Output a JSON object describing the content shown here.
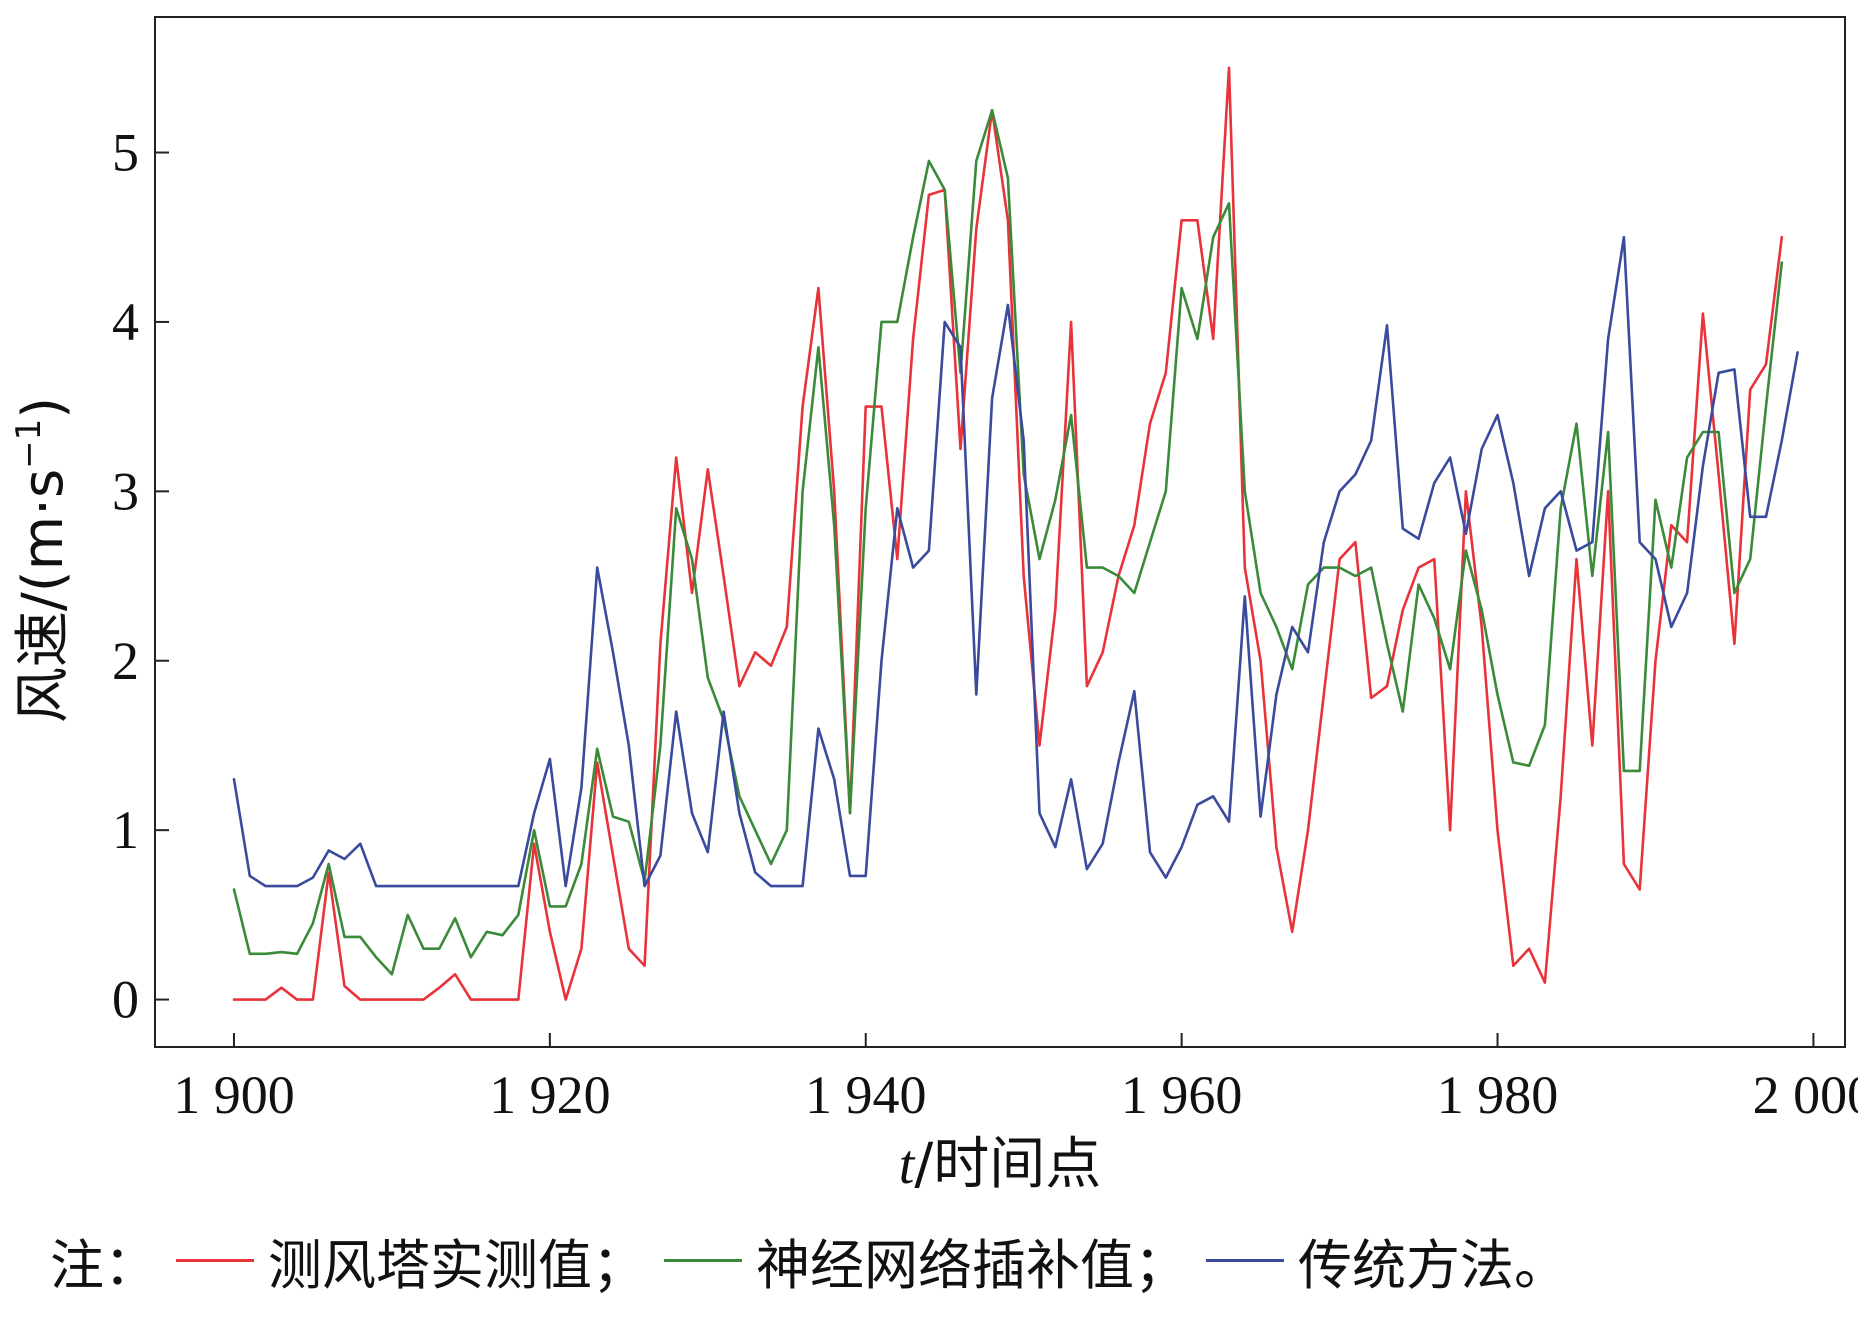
{
  "chart_data": {
    "type": "line",
    "xlabel_italic": "t",
    "xlabel_rest": "/时间点",
    "ylabel": "风速/(m·s",
    "ylabel_sup": "−1",
    "ylabel_end": ")",
    "xlim": [
      1895,
      2002
    ],
    "ylim": [
      -0.28,
      5.8
    ],
    "x_ticks": [
      1900,
      1920,
      1940,
      1960,
      1980,
      2000
    ],
    "x_tick_labels": [
      "1 900",
      "1 920",
      "1 940",
      "1 960",
      "1 980",
      "2 000"
    ],
    "y_ticks": [
      0,
      1,
      2,
      3,
      4,
      5
    ],
    "y_tick_labels": [
      "0",
      "1",
      "2",
      "3",
      "4",
      "5"
    ],
    "grid": false,
    "x_start": 1900,
    "series": [
      {
        "name": "测风塔实测值",
        "color": "#e8333a",
        "values": [
          0.0,
          0.0,
          0.0,
          0.07,
          0.0,
          0.0,
          0.75,
          0.08,
          0.0,
          0.0,
          0.0,
          0.0,
          0.0,
          0.07,
          0.15,
          0.0,
          0.0,
          0.0,
          0.0,
          0.92,
          0.4,
          0.0,
          0.3,
          1.4,
          0.85,
          0.3,
          0.2,
          2.1,
          3.2,
          2.4,
          3.13,
          2.5,
          1.85,
          2.05,
          1.97,
          2.2,
          3.5,
          4.2,
          3.0,
          1.1,
          3.5,
          3.5,
          2.6,
          3.9,
          4.75,
          4.78,
          3.25,
          4.55,
          5.25,
          4.6,
          2.5,
          1.5,
          2.3,
          4.0,
          1.85,
          2.05,
          2.5,
          2.8,
          3.4,
          3.7,
          4.6,
          4.6,
          3.9,
          5.5,
          2.55,
          2.0,
          0.9,
          0.4,
          1.0,
          1.8,
          2.6,
          2.7,
          1.78,
          1.85,
          2.3,
          2.55,
          2.6,
          1.0,
          3.0,
          2.2,
          1.0,
          0.2,
          0.3,
          0.1,
          1.2,
          2.6,
          1.5,
          3.0,
          0.8,
          0.65,
          2.0,
          2.8,
          2.7,
          4.05,
          3.1,
          2.1,
          3.6,
          3.75,
          4.5
        ]
      },
      {
        "name": "神经网络插补值",
        "color": "#3a8a3a",
        "values": [
          0.65,
          0.27,
          0.27,
          0.28,
          0.27,
          0.45,
          0.8,
          0.37,
          0.37,
          0.25,
          0.15,
          0.5,
          0.3,
          0.3,
          0.48,
          0.25,
          0.4,
          0.38,
          0.5,
          1.0,
          0.55,
          0.55,
          0.8,
          1.48,
          1.08,
          1.05,
          0.7,
          1.5,
          2.9,
          2.6,
          1.9,
          1.65,
          1.2,
          1.0,
          0.8,
          1.0,
          3.0,
          3.85,
          2.8,
          1.1,
          2.9,
          4.0,
          4.0,
          4.5,
          4.95,
          4.78,
          3.7,
          4.95,
          5.25,
          4.85,
          3.1,
          2.6,
          2.95,
          3.45,
          2.55,
          2.55,
          2.5,
          2.4,
          2.7,
          3.0,
          4.2,
          3.9,
          4.5,
          4.7,
          3.0,
          2.4,
          2.2,
          1.95,
          2.45,
          2.55,
          2.55,
          2.5,
          2.55,
          2.1,
          1.7,
          2.45,
          2.25,
          1.95,
          2.65,
          2.3,
          1.8,
          1.4,
          1.38,
          1.62,
          2.9,
          3.4,
          2.5,
          3.35,
          1.35,
          1.35,
          2.95,
          2.55,
          3.2,
          3.35,
          3.35,
          2.4,
          2.6,
          3.5,
          4.35
        ]
      },
      {
        "name": "传统方法",
        "color": "#3a4a9c",
        "values": [
          1.3,
          0.73,
          0.67,
          0.67,
          0.67,
          0.72,
          0.88,
          0.83,
          0.92,
          0.67,
          0.67,
          0.67,
          0.67,
          0.67,
          0.67,
          0.67,
          0.67,
          0.67,
          0.67,
          1.1,
          1.42,
          0.67,
          1.25,
          2.55,
          2.05,
          1.5,
          0.67,
          0.85,
          1.7,
          1.1,
          0.87,
          1.7,
          1.1,
          0.75,
          0.67,
          0.67,
          0.67,
          1.6,
          1.3,
          0.73,
          0.73,
          2.0,
          2.9,
          2.55,
          2.65,
          4.0,
          3.85,
          1.8,
          3.55,
          4.1,
          3.3,
          1.1,
          0.9,
          1.3,
          0.77,
          0.92,
          1.4,
          1.82,
          0.87,
          0.72,
          0.9,
          1.15,
          1.2,
          1.05,
          2.38,
          1.08,
          1.8,
          2.2,
          2.05,
          2.7,
          3.0,
          3.1,
          3.3,
          3.98,
          2.78,
          2.72,
          3.05,
          3.2,
          2.75,
          3.25,
          3.45,
          3.05,
          2.5,
          2.9,
          3.0,
          2.65,
          2.7,
          3.9,
          4.5,
          2.7,
          2.6,
          2.2,
          2.4,
          3.15,
          3.7,
          3.72,
          2.85,
          2.85,
          3.3,
          3.82
        ]
      }
    ]
  },
  "legend": {
    "prefix": "注：",
    "items": [
      {
        "label": "测风塔实测值；",
        "color": "#e8333a"
      },
      {
        "label": "神经网络插补值；",
        "color": "#3a8a3a"
      },
      {
        "label": "传统方法。",
        "color": "#3a4a9c"
      }
    ]
  }
}
